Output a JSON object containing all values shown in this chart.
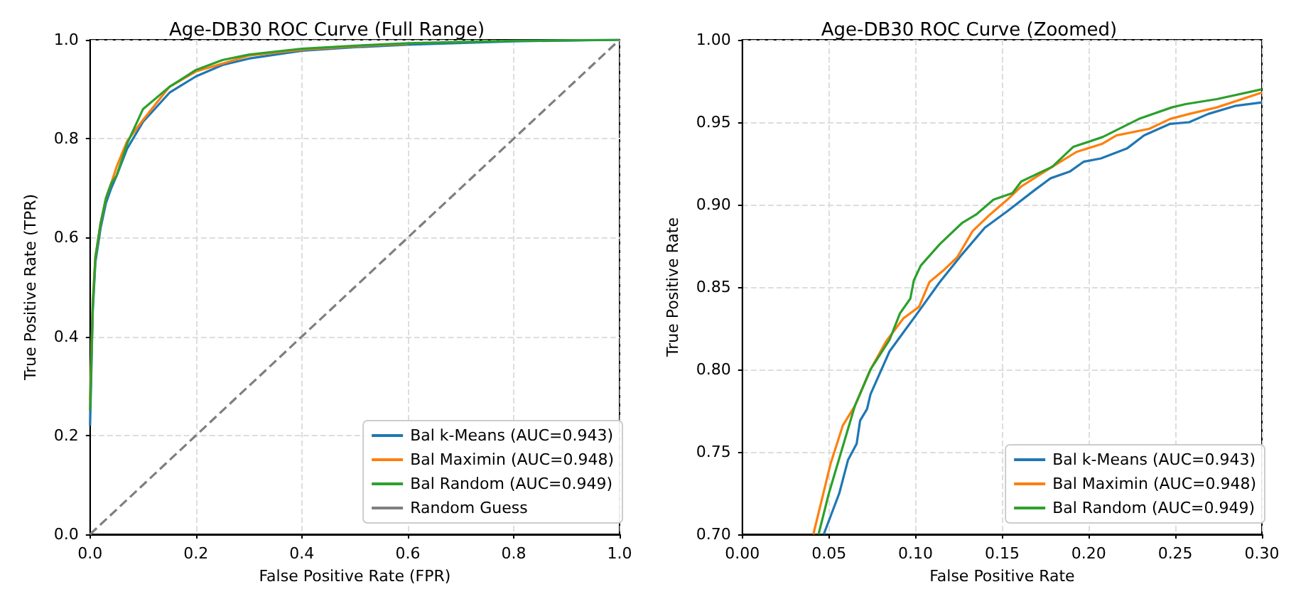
{
  "chart_data": [
    {
      "type": "line",
      "title": "Age-DB30 ROC Curve (Full Range)",
      "xlabel": "False Positive Rate (FPR)",
      "ylabel": "True Positive Rate (TPR)",
      "xlim": [
        0,
        1
      ],
      "ylim": [
        0,
        1
      ],
      "xticks": [
        {
          "value": 0,
          "label": "0.0"
        },
        {
          "value": 0.2,
          "label": "0.2"
        },
        {
          "value": 0.4,
          "label": "0.4"
        },
        {
          "value": 0.6,
          "label": "0.6"
        },
        {
          "value": 0.8,
          "label": "0.8"
        },
        {
          "value": 1,
          "label": "1.0"
        }
      ],
      "yticks": [
        {
          "value": 0,
          "label": "0.0"
        },
        {
          "value": 0.2,
          "label": "0.2"
        },
        {
          "value": 0.4,
          "label": "0.4"
        },
        {
          "value": 0.6,
          "label": "0.6"
        },
        {
          "value": 0.8,
          "label": "0.8"
        },
        {
          "value": 1,
          "label": "1.0"
        }
      ],
      "grid": true,
      "legend": "bottom right",
      "marker": "none",
      "x": [
        0,
        0.005,
        0.01,
        0.02,
        0.03,
        0.04,
        0.05,
        0.07,
        0.1,
        0.15,
        0.2,
        0.25,
        0.3,
        0.4,
        0.5,
        0.6,
        0.8,
        1.0
      ],
      "series": [
        {
          "name": "Bal k-Means (AUC=0.943)",
          "color": "#1f77b4",
          "values": [
            0.22,
            0.45,
            0.55,
            0.62,
            0.67,
            0.7,
            0.725,
            0.78,
            0.834,
            0.893,
            0.926,
            0.949,
            0.962,
            0.978,
            0.985,
            0.99,
            0.997,
            1.0
          ]
        },
        {
          "name": "Bal Maximin (AUC=0.948)",
          "color": "#ff7f0e",
          "values": [
            0.27,
            0.47,
            0.56,
            0.63,
            0.68,
            0.71,
            0.743,
            0.795,
            0.838,
            0.905,
            0.936,
            0.952,
            0.968,
            0.98,
            0.987,
            0.992,
            null,
            null
          ]
        },
        {
          "name": "Bal Random (AUC=0.949)",
          "color": "#2ca02c",
          "values": [
            0.25,
            0.46,
            0.56,
            0.63,
            0.68,
            0.71,
            0.725,
            0.79,
            0.86,
            0.905,
            0.939,
            0.959,
            0.97,
            0.982,
            0.988,
            0.993,
            0.998,
            1.0
          ]
        },
        {
          "name": "Random Guess",
          "color": "#7f7f7f",
          "line_style": "dashed",
          "x": [
            0,
            1
          ],
          "values": [
            0,
            1
          ]
        }
      ]
    },
    {
      "type": "line",
      "title": "Age-DB30 ROC Curve (Zoomed)",
      "xlabel": "False Positive Rate",
      "ylabel": "True Positive Rate",
      "xlim": [
        0,
        0.3
      ],
      "ylim": [
        0.7,
        1.0
      ],
      "xticks": [
        {
          "value": 0,
          "label": "0.00"
        },
        {
          "value": 0.05,
          "label": "0.05"
        },
        {
          "value": 0.1,
          "label": "0.10"
        },
        {
          "value": 0.15,
          "label": "0.15"
        },
        {
          "value": 0.2,
          "label": "0.20"
        },
        {
          "value": 0.25,
          "label": "0.25"
        },
        {
          "value": 0.3,
          "label": "0.30"
        }
      ],
      "yticks": [
        {
          "value": 0.7,
          "label": "0.70"
        },
        {
          "value": 0.75,
          "label": "0.75"
        },
        {
          "value": 0.8,
          "label": "0.80"
        },
        {
          "value": 0.85,
          "label": "0.85"
        },
        {
          "value": 0.9,
          "label": "0.90"
        },
        {
          "value": 0.95,
          "label": "0.95"
        },
        {
          "value": 1.0,
          "label": "1.00"
        }
      ],
      "grid": true,
      "legend": "bottom right",
      "marker": "none",
      "series": [
        {
          "name": "Bal k-Means (AUC=0.943)",
          "color": "#1f77b4",
          "x": [
            0.047,
            0.056,
            0.061,
            0.066,
            0.068,
            0.072,
            0.074,
            0.085,
            0.101,
            0.114,
            0.127,
            0.14,
            0.153,
            0.169,
            0.178,
            0.189,
            0.197,
            0.207,
            0.222,
            0.232,
            0.247,
            0.258,
            0.269,
            0.285,
            0.3
          ],
          "values": [
            0.7,
            0.725,
            0.745,
            0.755,
            0.769,
            0.776,
            0.785,
            0.811,
            0.834,
            0.853,
            0.87,
            0.886,
            0.896,
            0.909,
            0.916,
            0.92,
            0.926,
            0.928,
            0.934,
            0.942,
            0.949,
            0.95,
            0.955,
            0.96,
            0.962
          ]
        },
        {
          "name": "Bal Maximin (AUC=0.948)",
          "color": "#ff7f0e",
          "x": [
            0.041,
            0.051,
            0.058,
            0.065,
            0.074,
            0.083,
            0.093,
            0.102,
            0.108,
            0.116,
            0.124,
            0.133,
            0.143,
            0.153,
            0.161,
            0.179,
            0.193,
            0.208,
            0.216,
            0.235,
            0.247,
            0.258,
            0.274,
            0.3
          ],
          "values": [
            0.7,
            0.743,
            0.766,
            0.778,
            0.8,
            0.817,
            0.831,
            0.838,
            0.853,
            0.86,
            0.868,
            0.884,
            0.894,
            0.903,
            0.911,
            0.923,
            0.932,
            0.937,
            0.942,
            0.946,
            0.952,
            0.955,
            0.959,
            0.968
          ]
        },
        {
          "name": "Bal Random (AUC=0.949)",
          "color": "#2ca02c",
          "x": [
            0.044,
            0.05,
            0.065,
            0.074,
            0.085,
            0.091,
            0.097,
            0.099,
            0.103,
            0.114,
            0.127,
            0.135,
            0.145,
            0.156,
            0.161,
            0.179,
            0.191,
            0.208,
            0.229,
            0.248,
            0.256,
            0.274,
            0.3
          ],
          "values": [
            0.7,
            0.725,
            0.778,
            0.8,
            0.818,
            0.834,
            0.843,
            0.854,
            0.863,
            0.876,
            0.889,
            0.894,
            0.903,
            0.907,
            0.914,
            0.923,
            0.935,
            0.941,
            0.952,
            0.959,
            0.961,
            0.964,
            0.97
          ]
        }
      ]
    }
  ]
}
